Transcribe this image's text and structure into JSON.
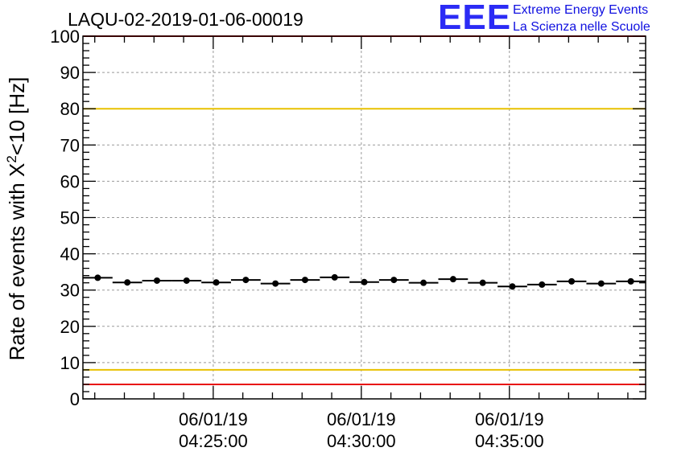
{
  "chart_data": {
    "type": "scatter",
    "title": "LAQU-02-2019-01-06-00019",
    "ylabel": "Rate of events with X",
    "ylabel_sup": "2",
    "ylabel_tail": "<10 [Hz]",
    "xlabel": "",
    "ylim": [
      0,
      100
    ],
    "y_ticks": [
      0,
      10,
      20,
      30,
      40,
      50,
      60,
      70,
      80,
      90,
      100
    ],
    "y_tick_labels": [
      "0",
      "10",
      "20",
      "30",
      "40",
      "50",
      "60",
      "70",
      "80",
      "90",
      "100"
    ],
    "xlim_minutes": [
      0,
      19
    ],
    "x_ticks_minutes": [
      4.4,
      9.4,
      14.4
    ],
    "x_tick_labels": [
      {
        "date": "06/01/19",
        "time": "04:25:00"
      },
      {
        "date": "06/01/19",
        "time": "04:30:00"
      },
      {
        "date": "06/01/19",
        "time": "04:35:00"
      }
    ],
    "bin_width_minutes": 1,
    "x": [
      0.5,
      1.5,
      2.5,
      3.5,
      4.5,
      5.5,
      6.5,
      7.5,
      8.5,
      9.5,
      10.5,
      11.5,
      12.5,
      13.5,
      14.5,
      15.5,
      16.5,
      17.5,
      18.5
    ],
    "values": [
      33.4,
      32.1,
      32.6,
      32.6,
      32.1,
      32.8,
      31.8,
      32.8,
      33.5,
      32.2,
      32.8,
      32.0,
      33.0,
      32.0,
      31.0,
      31.5,
      32.4,
      31.8,
      32.4
    ],
    "reference_lines": [
      {
        "y": 80,
        "color": "#e8c100",
        "name": "upper-warning"
      },
      {
        "y": 8,
        "color": "#e8c100",
        "name": "lower-warning"
      },
      {
        "y": 100,
        "color": "#e81010",
        "name": "upper-limit"
      },
      {
        "y": 4,
        "color": "#e81010",
        "name": "lower-limit"
      }
    ],
    "grid": true,
    "marker_color": "#000000"
  },
  "logo": {
    "mark": "EEE",
    "line1": "Extreme Energy Events",
    "line2": "La Scienza nelle Scuole"
  }
}
